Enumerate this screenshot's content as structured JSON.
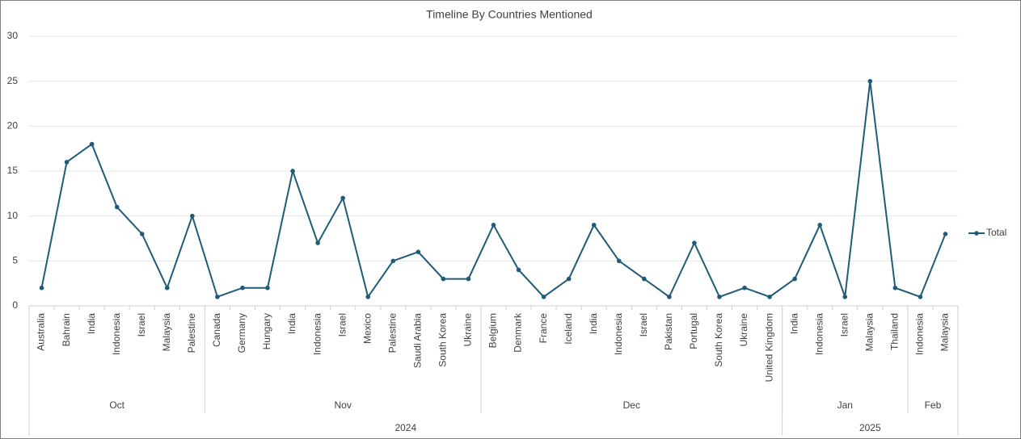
{
  "chart_data": {
    "type": "line",
    "title": "Timeline By Countries Mentioned",
    "years": [
      {
        "label": "2024",
        "months": [
          {
            "label": "Oct",
            "categories": [
              "Australia",
              "Bahrain",
              "India",
              "Indonesia",
              "Israel",
              "Malaysia",
              "Palestine"
            ]
          },
          {
            "label": "Nov",
            "categories": [
              "Canada",
              "Germany",
              "Hungary",
              "India",
              "Indonesia",
              "Israel",
              "Mexico",
              "Palestine",
              "Saudi Arabia",
              "South Korea",
              "Ukraine"
            ]
          },
          {
            "label": "Dec",
            "categories": [
              "Belgium",
              "Denmark",
              "France",
              "Iceland",
              "India",
              "Indonesia",
              "Israel",
              "Pakistan",
              "Portugal",
              "South Korea",
              "Ukraine",
              "United Kingdom"
            ]
          }
        ]
      },
      {
        "label": "2025",
        "months": [
          {
            "label": "Jan",
            "categories": [
              "India",
              "Indonesia",
              "Israel",
              "Malaysia",
              "Thailand"
            ]
          },
          {
            "label": "Feb",
            "categories": [
              "Indonesia",
              "Malaysia"
            ]
          }
        ]
      }
    ],
    "series": [
      {
        "name": "Total",
        "color": "#1f5c7a",
        "values": [
          2,
          16,
          18,
          11,
          8,
          2,
          10,
          1,
          2,
          2,
          15,
          7,
          12,
          1,
          5,
          6,
          3,
          3,
          9,
          4,
          1,
          3,
          9,
          5,
          3,
          1,
          7,
          1,
          2,
          1,
          3,
          9,
          1,
          25,
          2,
          1,
          8
        ]
      }
    ],
    "ylim": [
      0,
      30
    ],
    "yticks": [
      0,
      5,
      10,
      15,
      20,
      25,
      30
    ],
    "grid": true,
    "legend": "right"
  }
}
